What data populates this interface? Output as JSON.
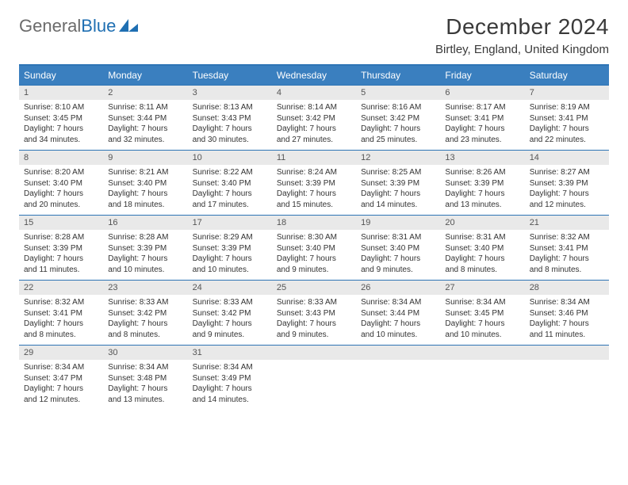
{
  "brand": {
    "part1": "General",
    "part2": "Blue"
  },
  "title": "December 2024",
  "location": "Birtley, England, United Kingdom",
  "colors": {
    "headerBar": "#3a7fbf",
    "ruleLine": "#2e74b5",
    "dayLabelBg": "#e9e9e9",
    "brandBlue": "#1f6fb2"
  },
  "weekdays": [
    "Sunday",
    "Monday",
    "Tuesday",
    "Wednesday",
    "Thursday",
    "Friday",
    "Saturday"
  ],
  "weeks": [
    [
      {
        "n": "1",
        "sunrise": "8:10 AM",
        "sunset": "3:45 PM",
        "dlh": "7",
        "dlm": "34"
      },
      {
        "n": "2",
        "sunrise": "8:11 AM",
        "sunset": "3:44 PM",
        "dlh": "7",
        "dlm": "32"
      },
      {
        "n": "3",
        "sunrise": "8:13 AM",
        "sunset": "3:43 PM",
        "dlh": "7",
        "dlm": "30"
      },
      {
        "n": "4",
        "sunrise": "8:14 AM",
        "sunset": "3:42 PM",
        "dlh": "7",
        "dlm": "27"
      },
      {
        "n": "5",
        "sunrise": "8:16 AM",
        "sunset": "3:42 PM",
        "dlh": "7",
        "dlm": "25"
      },
      {
        "n": "6",
        "sunrise": "8:17 AM",
        "sunset": "3:41 PM",
        "dlh": "7",
        "dlm": "23"
      },
      {
        "n": "7",
        "sunrise": "8:19 AM",
        "sunset": "3:41 PM",
        "dlh": "7",
        "dlm": "22"
      }
    ],
    [
      {
        "n": "8",
        "sunrise": "8:20 AM",
        "sunset": "3:40 PM",
        "dlh": "7",
        "dlm": "20"
      },
      {
        "n": "9",
        "sunrise": "8:21 AM",
        "sunset": "3:40 PM",
        "dlh": "7",
        "dlm": "18"
      },
      {
        "n": "10",
        "sunrise": "8:22 AM",
        "sunset": "3:40 PM",
        "dlh": "7",
        "dlm": "17"
      },
      {
        "n": "11",
        "sunrise": "8:24 AM",
        "sunset": "3:39 PM",
        "dlh": "7",
        "dlm": "15"
      },
      {
        "n": "12",
        "sunrise": "8:25 AM",
        "sunset": "3:39 PM",
        "dlh": "7",
        "dlm": "14"
      },
      {
        "n": "13",
        "sunrise": "8:26 AM",
        "sunset": "3:39 PM",
        "dlh": "7",
        "dlm": "13"
      },
      {
        "n": "14",
        "sunrise": "8:27 AM",
        "sunset": "3:39 PM",
        "dlh": "7",
        "dlm": "12"
      }
    ],
    [
      {
        "n": "15",
        "sunrise": "8:28 AM",
        "sunset": "3:39 PM",
        "dlh": "7",
        "dlm": "11"
      },
      {
        "n": "16",
        "sunrise": "8:28 AM",
        "sunset": "3:39 PM",
        "dlh": "7",
        "dlm": "10"
      },
      {
        "n": "17",
        "sunrise": "8:29 AM",
        "sunset": "3:39 PM",
        "dlh": "7",
        "dlm": "10"
      },
      {
        "n": "18",
        "sunrise": "8:30 AM",
        "sunset": "3:40 PM",
        "dlh": "7",
        "dlm": "9"
      },
      {
        "n": "19",
        "sunrise": "8:31 AM",
        "sunset": "3:40 PM",
        "dlh": "7",
        "dlm": "9"
      },
      {
        "n": "20",
        "sunrise": "8:31 AM",
        "sunset": "3:40 PM",
        "dlh": "7",
        "dlm": "8"
      },
      {
        "n": "21",
        "sunrise": "8:32 AM",
        "sunset": "3:41 PM",
        "dlh": "7",
        "dlm": "8"
      }
    ],
    [
      {
        "n": "22",
        "sunrise": "8:32 AM",
        "sunset": "3:41 PM",
        "dlh": "7",
        "dlm": "8"
      },
      {
        "n": "23",
        "sunrise": "8:33 AM",
        "sunset": "3:42 PM",
        "dlh": "7",
        "dlm": "8"
      },
      {
        "n": "24",
        "sunrise": "8:33 AM",
        "sunset": "3:42 PM",
        "dlh": "7",
        "dlm": "9"
      },
      {
        "n": "25",
        "sunrise": "8:33 AM",
        "sunset": "3:43 PM",
        "dlh": "7",
        "dlm": "9"
      },
      {
        "n": "26",
        "sunrise": "8:34 AM",
        "sunset": "3:44 PM",
        "dlh": "7",
        "dlm": "10"
      },
      {
        "n": "27",
        "sunrise": "8:34 AM",
        "sunset": "3:45 PM",
        "dlh": "7",
        "dlm": "10"
      },
      {
        "n": "28",
        "sunrise": "8:34 AM",
        "sunset": "3:46 PM",
        "dlh": "7",
        "dlm": "11"
      }
    ],
    [
      {
        "n": "29",
        "sunrise": "8:34 AM",
        "sunset": "3:47 PM",
        "dlh": "7",
        "dlm": "12"
      },
      {
        "n": "30",
        "sunrise": "8:34 AM",
        "sunset": "3:48 PM",
        "dlh": "7",
        "dlm": "13"
      },
      {
        "n": "31",
        "sunrise": "8:34 AM",
        "sunset": "3:49 PM",
        "dlh": "7",
        "dlm": "14"
      },
      null,
      null,
      null,
      null
    ]
  ]
}
